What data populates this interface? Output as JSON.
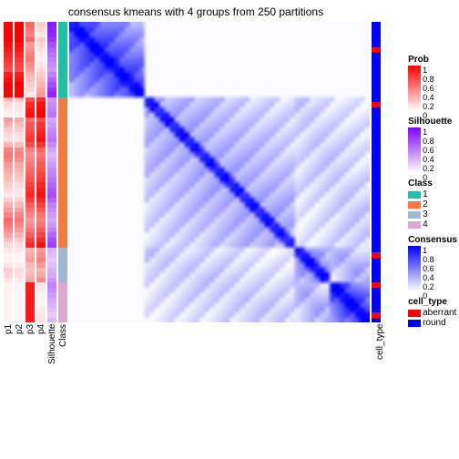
{
  "title": "consensus kmeans with 4 groups from 250 partitions",
  "layout": {
    "heatmap_size": 330,
    "ann_height": 330,
    "gap": 2,
    "ann_widths": {
      "p": 10,
      "sil": 10,
      "class": 10,
      "cell": 10
    }
  },
  "colors": {
    "background": "#ffffff",
    "prob_low": "#ffffff",
    "prob_high": "#ff0000",
    "sil_low": "#ffffff",
    "sil_high": "#8000ff",
    "class": {
      "1": "#1fbfa8",
      "2": "#f47b3f",
      "3": "#9fb8d4",
      "4": "#dba9cc"
    },
    "cons_low": "#ffffff",
    "cons_high": "#0000ff",
    "cell_type": {
      "aberrant": "#ff0000",
      "round": "#0000ff"
    }
  },
  "row_annotations": {
    "n": 60,
    "class_breaks": [
      0,
      15,
      45,
      52,
      60
    ],
    "class_order": [
      "1",
      "2",
      "3",
      "4"
    ],
    "p1": [
      1,
      1,
      1,
      1,
      0.95,
      0.9,
      0.85,
      0.8,
      0.75,
      0.7,
      0.9,
      0.95,
      1,
      1,
      1,
      0.25,
      0.15,
      0.1,
      0.05,
      0.4,
      0.3,
      0.2,
      0.15,
      0.1,
      0.3,
      0.5,
      0.55,
      0.5,
      0.4,
      0.35,
      0.3,
      0.25,
      0.2,
      0.15,
      0.1,
      0.2,
      0.3,
      0.4,
      0.5,
      0.6,
      0.55,
      0.45,
      0.35,
      0.25,
      0.15,
      0.1,
      0.05,
      0.05,
      0.1,
      0.2,
      0.15,
      0.1,
      0.05,
      0.05,
      0.05,
      0.05,
      0.05,
      0.05,
      0.05,
      0.05
    ],
    "p2": [
      1,
      1,
      1,
      1,
      0.95,
      0.9,
      0.85,
      0.8,
      0.75,
      0.7,
      0.9,
      0.95,
      1,
      1,
      1,
      0.2,
      0.1,
      0.1,
      0.05,
      0.35,
      0.25,
      0.2,
      0.12,
      0.1,
      0.25,
      0.45,
      0.5,
      0.45,
      0.35,
      0.3,
      0.25,
      0.2,
      0.15,
      0.1,
      0.1,
      0.18,
      0.28,
      0.38,
      0.48,
      0.55,
      0.5,
      0.4,
      0.3,
      0.2,
      0.12,
      0.1,
      0.05,
      0.05,
      0.08,
      0.15,
      0.12,
      0.08,
      0.05,
      0.05,
      0.05,
      0.05,
      0.05,
      0.05,
      0.05,
      0.05
    ],
    "p3": [
      0.6,
      0.55,
      0.5,
      0.6,
      0.4,
      0.45,
      0.5,
      0.55,
      0.45,
      0.4,
      0.3,
      0.25,
      0.2,
      0.15,
      0.1,
      0.7,
      0.85,
      0.9,
      0.95,
      0.6,
      0.65,
      0.7,
      0.75,
      0.8,
      0.7,
      0.5,
      0.45,
      0.5,
      0.55,
      0.6,
      0.65,
      0.7,
      0.75,
      0.8,
      0.85,
      0.75,
      0.65,
      0.55,
      0.5,
      0.4,
      0.45,
      0.55,
      0.65,
      0.75,
      0.85,
      0.3,
      0.35,
      0.4,
      0.3,
      0.25,
      0.3,
      0.35,
      0.9,
      0.9,
      0.9,
      0.9,
      0.9,
      0.9,
      0.9,
      0.9
    ],
    "p4": [
      0.2,
      0.15,
      0.1,
      0.2,
      0.15,
      0.1,
      0.08,
      0.05,
      0.1,
      0.15,
      0.2,
      0.25,
      0.3,
      0.35,
      0.4,
      0.85,
      0.95,
      0.98,
      1,
      0.7,
      0.8,
      0.85,
      0.9,
      0.95,
      0.8,
      0.6,
      0.55,
      0.6,
      0.65,
      0.7,
      0.75,
      0.8,
      0.85,
      0.9,
      0.95,
      0.85,
      0.75,
      0.65,
      0.55,
      0.5,
      0.55,
      0.65,
      0.75,
      0.85,
      0.95,
      0.4,
      0.45,
      0.5,
      0.4,
      0.3,
      0.35,
      0.45,
      0.1,
      0.08,
      0.05,
      0.05,
      0.05,
      0.08,
      0.1,
      0.12
    ],
    "silhouette": [
      0.9,
      0.88,
      0.85,
      0.8,
      0.7,
      0.6,
      0.55,
      0.5,
      0.45,
      0.4,
      0.5,
      0.6,
      0.7,
      0.8,
      0.85,
      0.4,
      0.45,
      0.5,
      0.55,
      0.35,
      0.4,
      0.45,
      0.5,
      0.55,
      0.45,
      0.35,
      0.3,
      0.35,
      0.4,
      0.45,
      0.5,
      0.55,
      0.6,
      0.65,
      0.7,
      0.6,
      0.5,
      0.45,
      0.4,
      0.35,
      0.4,
      0.5,
      0.6,
      0.7,
      0.75,
      0.3,
      0.25,
      0.2,
      0.25,
      0.3,
      0.35,
      0.4,
      0.5,
      0.45,
      0.4,
      0.35,
      0.3,
      0.25,
      0.2,
      0.3
    ],
    "cell_type": [
      "round",
      "round",
      "round",
      "round",
      "round",
      "aberrant",
      "round",
      "round",
      "round",
      "round",
      "round",
      "round",
      "round",
      "round",
      "round",
      "round",
      "aberrant",
      "round",
      "round",
      "round",
      "round",
      "round",
      "round",
      "round",
      "round",
      "round",
      "round",
      "round",
      "round",
      "round",
      "round",
      "round",
      "round",
      "round",
      "round",
      "round",
      "round",
      "round",
      "round",
      "round",
      "round",
      "round",
      "round",
      "round",
      "round",
      "round",
      "aberrant",
      "round",
      "round",
      "round",
      "round",
      "round",
      "aberrant",
      "round",
      "round",
      "round",
      "round",
      "round",
      "aberrant",
      "round"
    ]
  },
  "consensus_blocks": [
    {
      "r": [
        0,
        15
      ],
      "c": [
        0,
        15
      ],
      "base": 0.8,
      "diag": 1.0
    },
    {
      "r": [
        15,
        45
      ],
      "c": [
        15,
        45
      ],
      "base": 0.35,
      "diag": 0.9
    },
    {
      "r": [
        45,
        52
      ],
      "c": [
        45,
        52
      ],
      "base": 0.55,
      "diag": 0.95
    },
    {
      "r": [
        52,
        60
      ],
      "c": [
        52,
        60
      ],
      "base": 0.9,
      "diag": 1.0
    },
    {
      "r": [
        15,
        45
      ],
      "c": [
        45,
        60
      ],
      "base": 0.2,
      "diag": 0
    },
    {
      "r": [
        45,
        60
      ],
      "c": [
        15,
        45
      ],
      "base": 0.2,
      "diag": 0
    },
    {
      "r": [
        45,
        52
      ],
      "c": [
        52,
        60
      ],
      "base": 0.35,
      "diag": 0
    },
    {
      "r": [
        52,
        60
      ],
      "c": [
        45,
        52
      ],
      "base": 0.35,
      "diag": 0
    }
  ],
  "xlabels": [
    "p1",
    "p2",
    "p3",
    "p4",
    "Silhouette",
    "Class"
  ],
  "rightlabel": "cell_type",
  "legends": {
    "prob": {
      "title": "Prob",
      "ticks": [
        "1",
        "0.8",
        "0.6",
        "0.4",
        "0.2",
        "0"
      ]
    },
    "sil": {
      "title": "Silhouette",
      "ticks": [
        "1",
        "0.8",
        "0.6",
        "0.4",
        "0.2",
        "0"
      ]
    },
    "class": {
      "title": "Class",
      "items": [
        "1",
        "2",
        "3",
        "4"
      ]
    },
    "cons": {
      "title": "Consensus",
      "ticks": [
        "1",
        "0.8",
        "0.6",
        "0.4",
        "0.2",
        "0"
      ]
    },
    "cell": {
      "title": "cell_type",
      "items": [
        "aberrant",
        "round"
      ]
    }
  }
}
